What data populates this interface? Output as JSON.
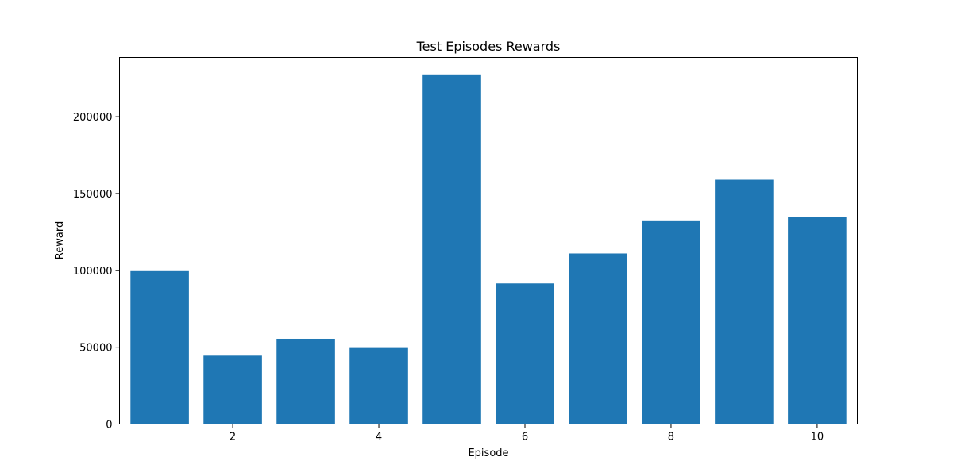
{
  "chart_data": {
    "type": "bar",
    "title": "Test Episodes Rewards",
    "xlabel": "Episode",
    "ylabel": "Reward",
    "x": [
      1,
      2,
      3,
      4,
      5,
      6,
      7,
      8,
      9,
      10
    ],
    "values": [
      100000,
      44500,
      55500,
      49500,
      227500,
      91500,
      111000,
      132500,
      159000,
      134500
    ],
    "xlim": [
      0.45,
      10.55
    ],
    "ylim": [
      0,
      238500
    ],
    "xticks": [
      2,
      4,
      6,
      8,
      10
    ],
    "yticks": [
      0,
      50000,
      100000,
      150000,
      200000
    ],
    "bar_color": "#1f77b4",
    "grid": false,
    "legend": "none"
  }
}
